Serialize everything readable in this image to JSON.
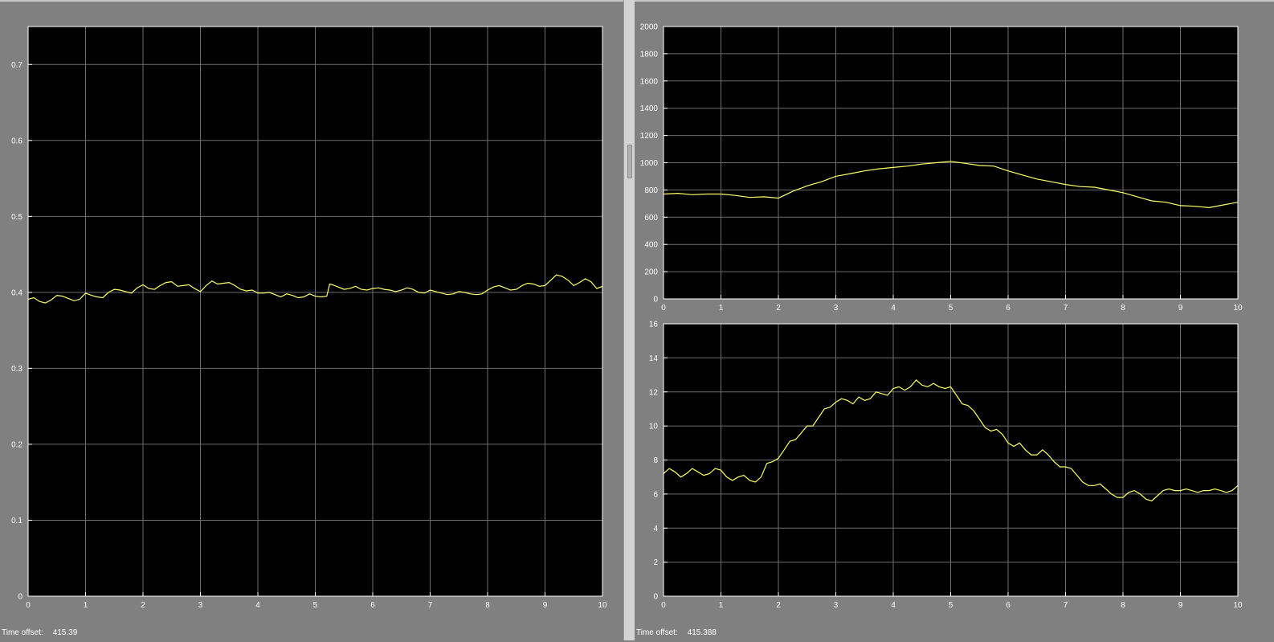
{
  "colors": {
    "background": "#808080",
    "axes_bg": "#000000",
    "grid": "#6e6e6e",
    "frame": "#ffffff",
    "trace": "#ffff66",
    "text": "#ffffff"
  },
  "scopes": {
    "left": {
      "time_offset_label": "Time offset:",
      "time_offset_value": "415.39"
    },
    "right": {
      "time_offset_label": "Time offset:",
      "time_offset_value": "415.388"
    }
  },
  "chart_data": [
    {
      "type": "line",
      "grid": true,
      "xlim": [
        0,
        10
      ],
      "ylim": [
        0,
        0.75
      ],
      "xticks": [
        "0",
        "1",
        "2",
        "3",
        "4",
        "5",
        "6",
        "7",
        "8",
        "9",
        "10"
      ],
      "yticks": [
        "0",
        "0.1",
        "0.2",
        "0.3",
        "0.4",
        "0.5",
        "0.6",
        "0.7"
      ],
      "ytick_values": [
        0,
        0.1,
        0.2,
        0.3,
        0.4,
        0.5,
        0.6,
        0.7
      ],
      "series": [
        {
          "x": [
            0,
            0.1,
            0.2,
            0.3,
            0.4,
            0.5,
            0.6,
            0.7,
            0.8,
            0.9,
            1.0,
            1.1,
            1.2,
            1.3,
            1.4,
            1.5,
            1.6,
            1.7,
            1.8,
            1.9,
            2.0,
            2.1,
            2.2,
            2.3,
            2.4,
            2.5,
            2.6,
            2.7,
            2.8,
            2.9,
            3.0,
            3.1,
            3.2,
            3.3,
            3.4,
            3.5,
            3.6,
            3.7,
            3.8,
            3.9,
            4.0,
            4.1,
            4.2,
            4.3,
            4.4,
            4.5,
            4.6,
            4.7,
            4.8,
            4.9,
            5.0,
            5.1,
            5.2,
            5.25,
            5.3,
            5.4,
            5.5,
            5.6,
            5.7,
            5.8,
            5.9,
            6.0,
            6.1,
            6.2,
            6.3,
            6.4,
            6.5,
            6.6,
            6.7,
            6.8,
            6.9,
            7.0,
            7.1,
            7.2,
            7.3,
            7.4,
            7.5,
            7.6,
            7.7,
            7.8,
            7.9,
            8.0,
            8.1,
            8.2,
            8.3,
            8.4,
            8.5,
            8.6,
            8.7,
            8.8,
            8.9,
            9.0,
            9.1,
            9.2,
            9.3,
            9.4,
            9.5,
            9.6,
            9.7,
            9.8,
            9.9,
            10.0
          ],
          "y": [
            0.391,
            0.393,
            0.388,
            0.386,
            0.39,
            0.396,
            0.395,
            0.392,
            0.389,
            0.391,
            0.399,
            0.396,
            0.394,
            0.393,
            0.4,
            0.404,
            0.403,
            0.401,
            0.399,
            0.406,
            0.41,
            0.405,
            0.404,
            0.409,
            0.413,
            0.414,
            0.408,
            0.409,
            0.41,
            0.405,
            0.401,
            0.409,
            0.415,
            0.411,
            0.412,
            0.413,
            0.409,
            0.404,
            0.402,
            0.403,
            0.399,
            0.399,
            0.4,
            0.397,
            0.394,
            0.398,
            0.396,
            0.393,
            0.394,
            0.398,
            0.395,
            0.394,
            0.395,
            0.411,
            0.41,
            0.407,
            0.404,
            0.405,
            0.408,
            0.404,
            0.403,
            0.405,
            0.406,
            0.404,
            0.403,
            0.401,
            0.403,
            0.406,
            0.404,
            0.4,
            0.399,
            0.403,
            0.401,
            0.399,
            0.397,
            0.398,
            0.401,
            0.4,
            0.398,
            0.397,
            0.398,
            0.403,
            0.407,
            0.409,
            0.406,
            0.403,
            0.404,
            0.409,
            0.412,
            0.411,
            0.408,
            0.409,
            0.416,
            0.423,
            0.421,
            0.416,
            0.409,
            0.413,
            0.418,
            0.414,
            0.405,
            0.408
          ]
        }
      ]
    },
    {
      "type": "line",
      "grid": true,
      "xlim": [
        0,
        10
      ],
      "ylim": [
        0,
        2000
      ],
      "xticks": [
        "0",
        "1",
        "2",
        "3",
        "4",
        "5",
        "6",
        "7",
        "8",
        "9",
        "10"
      ],
      "yticks": [
        "0",
        "200",
        "400",
        "600",
        "800",
        "1000",
        "1200",
        "1400",
        "1600",
        "1800",
        "2000"
      ],
      "ytick_values": [
        0,
        200,
        400,
        600,
        800,
        1000,
        1200,
        1400,
        1600,
        1800,
        2000
      ],
      "series": [
        {
          "x": [
            0,
            0.25,
            0.5,
            0.75,
            1.0,
            1.25,
            1.5,
            1.75,
            2.0,
            2.25,
            2.5,
            2.75,
            3.0,
            3.25,
            3.5,
            3.75,
            4.0,
            4.25,
            4.5,
            4.75,
            5.0,
            5.25,
            5.5,
            5.75,
            6.0,
            6.25,
            6.5,
            6.75,
            7.0,
            7.25,
            7.5,
            7.75,
            8.0,
            8.25,
            8.5,
            8.75,
            9.0,
            9.25,
            9.5,
            9.75,
            10.0
          ],
          "y": [
            770,
            775,
            765,
            770,
            770,
            760,
            745,
            750,
            740,
            790,
            830,
            860,
            900,
            920,
            940,
            955,
            965,
            975,
            990,
            1000,
            1010,
            995,
            980,
            975,
            940,
            910,
            880,
            860,
            840,
            825,
            820,
            800,
            780,
            750,
            720,
            710,
            685,
            680,
            670,
            690,
            710
          ]
        }
      ]
    },
    {
      "type": "line",
      "grid": true,
      "xlim": [
        0,
        10
      ],
      "ylim": [
        0,
        16
      ],
      "xticks": [
        "0",
        "1",
        "2",
        "3",
        "4",
        "5",
        "6",
        "7",
        "8",
        "9",
        "10"
      ],
      "yticks": [
        "0",
        "2",
        "4",
        "6",
        "8",
        "10",
        "12",
        "14",
        "16"
      ],
      "ytick_values": [
        0,
        2,
        4,
        6,
        8,
        10,
        12,
        14,
        16
      ],
      "series": [
        {
          "x": [
            0,
            0.1,
            0.2,
            0.3,
            0.4,
            0.5,
            0.6,
            0.7,
            0.8,
            0.9,
            1.0,
            1.1,
            1.2,
            1.3,
            1.4,
            1.5,
            1.6,
            1.7,
            1.8,
            1.9,
            2.0,
            2.1,
            2.2,
            2.3,
            2.4,
            2.5,
            2.6,
            2.7,
            2.8,
            2.9,
            3.0,
            3.1,
            3.2,
            3.3,
            3.4,
            3.5,
            3.6,
            3.7,
            3.8,
            3.9,
            4.0,
            4.1,
            4.2,
            4.3,
            4.4,
            4.5,
            4.6,
            4.7,
            4.8,
            4.9,
            5.0,
            5.1,
            5.2,
            5.3,
            5.4,
            5.5,
            5.6,
            5.7,
            5.8,
            5.9,
            6.0,
            6.1,
            6.2,
            6.3,
            6.4,
            6.5,
            6.6,
            6.7,
            6.8,
            6.9,
            7.0,
            7.1,
            7.2,
            7.3,
            7.4,
            7.5,
            7.6,
            7.7,
            7.8,
            7.9,
            8.0,
            8.1,
            8.2,
            8.3,
            8.4,
            8.5,
            8.6,
            8.7,
            8.8,
            8.9,
            9.0,
            9.1,
            9.2,
            9.3,
            9.4,
            9.5,
            9.6,
            9.7,
            9.8,
            9.9,
            10.0
          ],
          "y": [
            7.2,
            7.5,
            7.3,
            7.0,
            7.2,
            7.5,
            7.3,
            7.1,
            7.2,
            7.5,
            7.4,
            7.0,
            6.8,
            7.0,
            7.1,
            6.8,
            6.7,
            7.0,
            7.8,
            7.9,
            8.1,
            8.6,
            9.1,
            9.2,
            9.6,
            10.0,
            10.0,
            10.5,
            11.0,
            11.1,
            11.4,
            11.6,
            11.5,
            11.3,
            11.7,
            11.5,
            11.6,
            12.0,
            11.9,
            11.8,
            12.2,
            12.3,
            12.1,
            12.3,
            12.7,
            12.4,
            12.3,
            12.5,
            12.3,
            12.2,
            12.3,
            11.8,
            11.3,
            11.2,
            10.9,
            10.4,
            9.9,
            9.7,
            9.8,
            9.5,
            9.0,
            8.8,
            9.0,
            8.6,
            8.3,
            8.3,
            8.6,
            8.3,
            7.9,
            7.6,
            7.6,
            7.5,
            7.1,
            6.7,
            6.5,
            6.5,
            6.6,
            6.3,
            6.0,
            5.8,
            5.8,
            6.1,
            6.2,
            6.0,
            5.7,
            5.6,
            5.9,
            6.2,
            6.3,
            6.2,
            6.2,
            6.3,
            6.2,
            6.1,
            6.2,
            6.2,
            6.3,
            6.2,
            6.1,
            6.2,
            6.5
          ]
        }
      ]
    }
  ]
}
